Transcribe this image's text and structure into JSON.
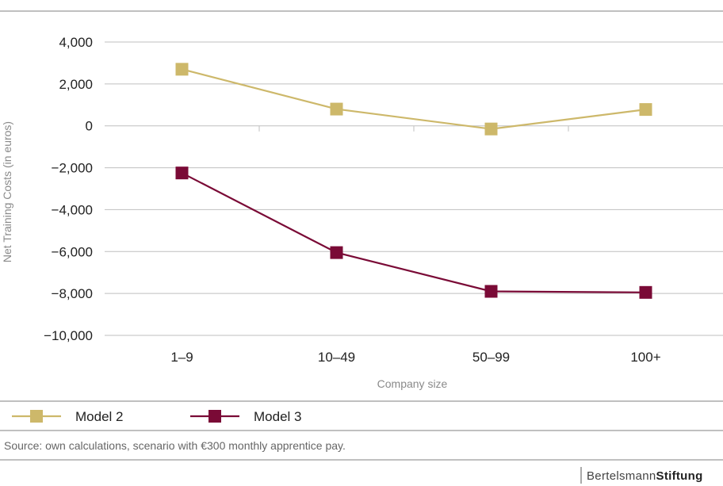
{
  "colors": {
    "model2": "#CDB86A",
    "model3": "#7A0A36",
    "gridline": "#bfbfbf",
    "rule": "#9a9a9a"
  },
  "chart_data": {
    "type": "line",
    "categories": [
      "1–9",
      "10–49",
      "50–99",
      "100+"
    ],
    "series": [
      {
        "name": "Model 2",
        "values": [
          2700,
          800,
          -150,
          780
        ],
        "marker": "square"
      },
      {
        "name": "Model 3",
        "values": [
          -2250,
          -6050,
          -7900,
          -7950
        ],
        "marker": "square"
      }
    ],
    "xlabel": "Company size",
    "ylabel": "Net Training Costs (in euros)",
    "ylim": [
      -10000,
      4000
    ],
    "yticks": [
      4000,
      2000,
      0,
      -2000,
      -4000,
      -6000,
      -8000,
      -10000
    ],
    "ytick_labels": [
      "4,000",
      "2,000",
      "0",
      "−2,000",
      "−4,000",
      "−6,000",
      "−8,000",
      "−10,000"
    ],
    "grid": true,
    "legend_position": "bottom-left"
  },
  "source": "Source: own calculations, scenario with €300 monthly apprentice pay.",
  "brand": {
    "part1": "Bertelsmann",
    "part2": "Stiftung"
  }
}
